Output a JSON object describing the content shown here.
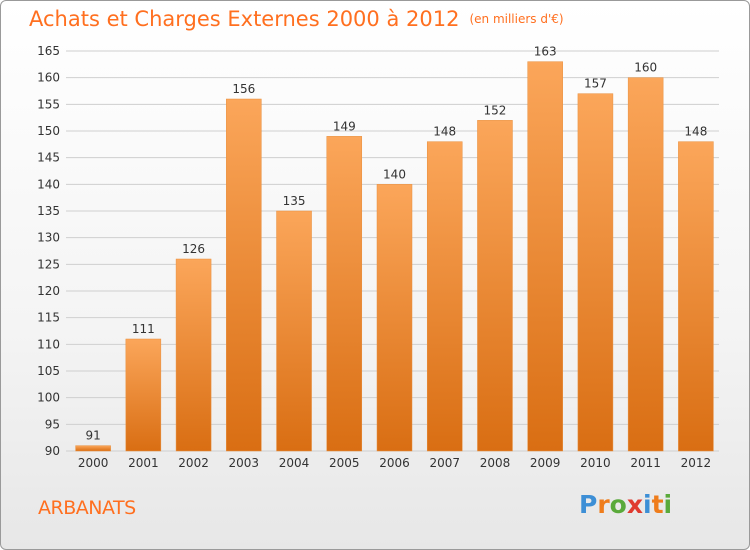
{
  "title": "Achats et Charges Externes 2000 à 2012",
  "subtitle": "(en milliers d'€)",
  "commune": "ARBANATS",
  "logo": {
    "text": "Proxiti",
    "letter_colors": [
      "#3d8fd6",
      "#ef7d1c",
      "#5aaa3b",
      "#e03a2f",
      "#3d8fd6",
      "#ef7d1c",
      "#5aaa3b"
    ]
  },
  "colors": {
    "bar_light": "#fba65a",
    "bar_dark": "#d96e13",
    "grid": "#cfcfcf",
    "axis_text": "#333333"
  },
  "chart_data": {
    "type": "bar",
    "categories": [
      "2000",
      "2001",
      "2002",
      "2003",
      "2004",
      "2005",
      "2006",
      "2007",
      "2008",
      "2009",
      "2010",
      "2011",
      "2012"
    ],
    "values": [
      91,
      111,
      126,
      156,
      135,
      149,
      140,
      148,
      152,
      163,
      157,
      160,
      148
    ],
    "ylim": [
      90,
      165
    ],
    "yticks": [
      90,
      95,
      100,
      105,
      110,
      115,
      120,
      125,
      130,
      135,
      140,
      145,
      150,
      155,
      160,
      165
    ],
    "grid": true,
    "data_labels": true
  }
}
